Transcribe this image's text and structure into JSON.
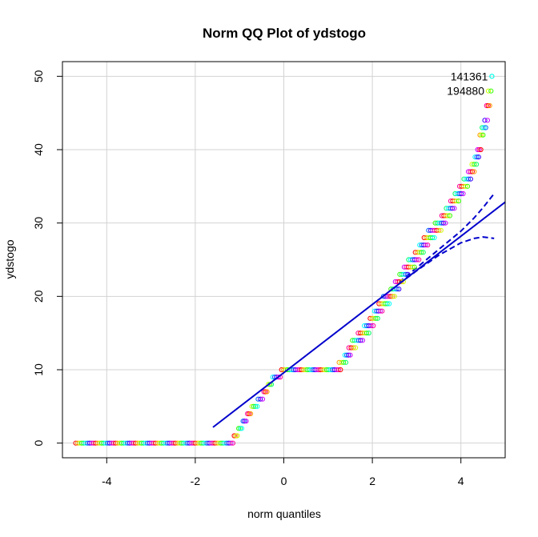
{
  "chart_data": {
    "type": "scatter",
    "title": "Norm QQ Plot of ydstogo",
    "xlabel": "norm quantiles",
    "ylabel": "ydstogo",
    "xlim": [
      -5.0,
      5.0
    ],
    "ylim": [
      -2.0,
      52.0
    ],
    "xticks": [
      -4,
      -2,
      0,
      2,
      4
    ],
    "yticks": [
      0,
      10,
      20,
      30,
      40,
      50
    ],
    "grid": true,
    "point_colors": [
      "#FF0000",
      "#FF9900",
      "#CCFF00",
      "#33FF00",
      "#00FF66",
      "#00FFFF",
      "#0066FF",
      "#3300FF",
      "#CC00FF",
      "#FF0099"
    ],
    "line_color": "#0000CC",
    "qq_points": {
      "y_values": [
        0,
        1,
        2,
        3,
        4,
        5,
        6,
        7,
        8,
        9,
        10,
        11,
        12,
        13,
        14,
        15,
        16,
        17,
        18,
        19,
        20,
        21,
        22,
        23,
        24,
        25,
        26,
        27,
        28,
        29,
        30,
        31,
        32,
        33,
        34,
        35,
        36,
        37,
        38,
        39,
        40,
        42,
        43,
        44,
        46,
        48,
        50
      ],
      "x_start": [
        -4.7,
        -1.12,
        -1.02,
        -0.92,
        -0.82,
        -0.72,
        -0.58,
        -0.45,
        -0.35,
        -0.25,
        -0.05,
        1.25,
        1.38,
        1.47,
        1.55,
        1.68,
        1.82,
        1.95,
        2.05,
        2.15,
        2.25,
        2.42,
        2.52,
        2.62,
        2.72,
        2.82,
        2.97,
        3.07,
        3.17,
        3.27,
        3.42,
        3.57,
        3.67,
        3.77,
        3.87,
        3.97,
        4.07,
        4.17,
        4.25,
        4.32,
        4.38,
        4.43,
        4.48,
        4.54,
        4.58,
        4.62,
        4.7
      ],
      "x_end": [
        -1.15,
        -1.05,
        -0.95,
        -0.85,
        -0.75,
        -0.6,
        -0.48,
        -0.38,
        -0.28,
        -0.08,
        1.28,
        1.4,
        1.5,
        1.62,
        1.78,
        1.92,
        2.02,
        2.12,
        2.22,
        2.38,
        2.5,
        2.6,
        2.7,
        2.8,
        2.95,
        3.05,
        3.15,
        3.25,
        3.4,
        3.55,
        3.65,
        3.75,
        3.85,
        3.95,
        4.05,
        4.15,
        4.22,
        4.3,
        4.35,
        4.4,
        4.45,
        4.5,
        4.56,
        4.6,
        4.65,
        4.68,
        4.7
      ]
    },
    "reference_line": {
      "intercept": 9.6,
      "slope": 4.65,
      "x_range": [
        -1.6,
        5.0
      ]
    },
    "confidence_band": {
      "x": [
        2.6,
        3.0,
        3.5,
        4.0,
        4.3,
        4.5,
        4.75
      ],
      "upper": [
        21.9,
        23.9,
        26.4,
        28.9,
        30.7,
        32.1,
        34.0
      ],
      "lower": [
        21.7,
        23.5,
        25.6,
        27.3,
        27.9,
        28.1,
        27.9
      ]
    },
    "point_labels": [
      {
        "text": "141361",
        "x": 4.7,
        "y": 50
      },
      {
        "text": "194880",
        "x": 4.62,
        "y": 48
      }
    ]
  }
}
